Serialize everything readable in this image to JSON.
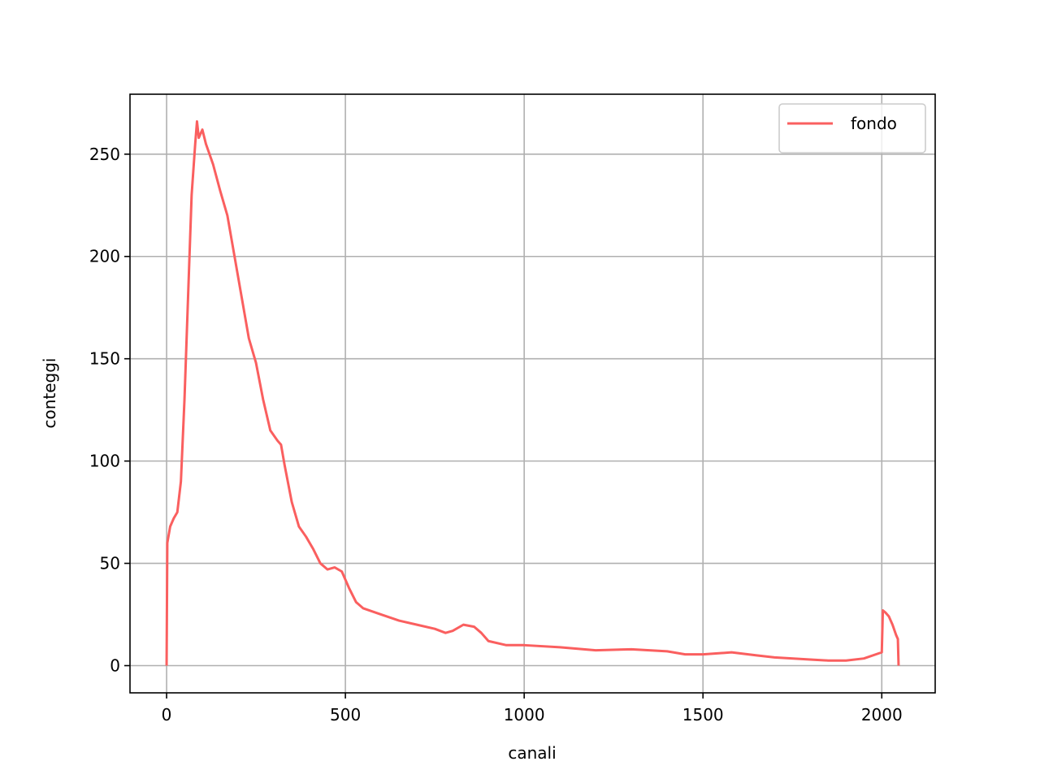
{
  "chart_data": {
    "type": "line",
    "x_label": "canali",
    "y_label": "conteggi",
    "x": [
      0,
      2,
      10,
      20,
      30,
      40,
      50,
      60,
      70,
      80,
      85,
      90,
      100,
      110,
      120,
      130,
      150,
      170,
      190,
      210,
      230,
      250,
      270,
      290,
      310,
      320,
      330,
      350,
      370,
      390,
      410,
      430,
      450,
      470,
      490,
      510,
      530,
      550,
      600,
      650,
      700,
      750,
      780,
      800,
      830,
      860,
      880,
      900,
      950,
      1000,
      1100,
      1200,
      1300,
      1400,
      1450,
      1500,
      1580,
      1650,
      1700,
      1800,
      1850,
      1900,
      1950,
      2000,
      2003,
      2010,
      2020,
      2030,
      2040,
      2045,
      2047
    ],
    "series": [
      {
        "name": "fondo",
        "color": "#fa5f5f",
        "values": [
          0,
          60,
          68,
          72,
          75,
          90,
          130,
          180,
          230,
          255,
          266,
          258,
          262,
          255,
          250,
          245,
          232,
          220,
          200,
          180,
          160,
          148,
          130,
          115,
          110,
          108,
          98,
          80,
          68,
          63,
          57,
          50,
          47,
          48,
          46,
          38,
          31,
          28,
          25,
          22,
          20,
          18,
          16,
          17,
          20,
          19,
          16,
          12,
          10,
          10,
          9,
          7.5,
          8,
          7,
          5.5,
          5.5,
          6.5,
          5,
          4,
          3,
          2.5,
          2.5,
          3.5,
          6.5,
          27,
          26,
          24,
          20,
          15,
          13,
          0
        ]
      }
    ],
    "xlim": [
      -102.35,
      2149.35
    ],
    "ylim": [
      -13.3,
      279.3
    ],
    "xticks": [
      0,
      500,
      1000,
      1500,
      2000
    ],
    "yticks": [
      0,
      50,
      100,
      150,
      200,
      250
    ],
    "grid": true,
    "legend": "upper-right"
  }
}
